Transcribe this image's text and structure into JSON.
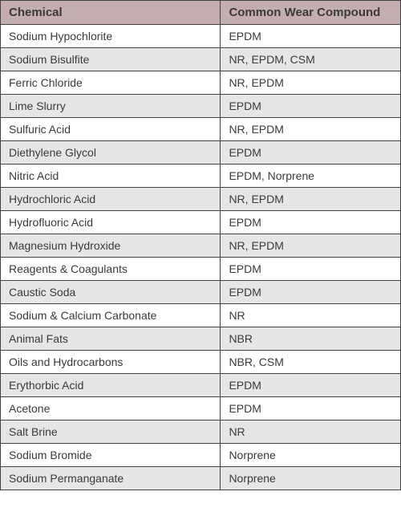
{
  "table": {
    "header_bg": "#c4aeb0",
    "row_even_bg": "#ffffff",
    "row_odd_bg": "#e6e6e5",
    "border_color": "#414042",
    "text_color": "#3a3a3a",
    "header_fontsize": 15,
    "cell_fontsize": 14,
    "columns": [
      {
        "key": "chemical",
        "label": "Chemical"
      },
      {
        "key": "compound",
        "label": "Common Wear Compound"
      }
    ],
    "rows": [
      {
        "chemical": "Sodium Hypochlorite",
        "compound": "EPDM"
      },
      {
        "chemical": "Sodium Bisulfite",
        "compound": "NR, EPDM, CSM"
      },
      {
        "chemical": "Ferric Chloride",
        "compound": "NR, EPDM"
      },
      {
        "chemical": "Lime Slurry",
        "compound": "EPDM"
      },
      {
        "chemical": "Sulfuric Acid",
        "compound": "NR, EPDM"
      },
      {
        "chemical": "Diethylene Glycol",
        "compound": "EPDM"
      },
      {
        "chemical": "Nitric Acid",
        "compound": "EPDM, Norprene"
      },
      {
        "chemical": "Hydrochloric Acid",
        "compound": "NR, EPDM"
      },
      {
        "chemical": "Hydrofluoric Acid",
        "compound": "EPDM"
      },
      {
        "chemical": "Magnesium Hydroxide",
        "compound": "NR, EPDM"
      },
      {
        "chemical": "Reagents & Coagulants",
        "compound": "EPDM"
      },
      {
        "chemical": "Caustic Soda",
        "compound": "EPDM"
      },
      {
        "chemical": "Sodium & Calcium Carbonate",
        "compound": "NR"
      },
      {
        "chemical": "Animal Fats",
        "compound": "NBR"
      },
      {
        "chemical": "Oils and Hydrocarbons",
        "compound": "NBR, CSM"
      },
      {
        "chemical": "Erythorbic Acid",
        "compound": "EPDM"
      },
      {
        "chemical": "Acetone",
        "compound": "EPDM"
      },
      {
        "chemical": "Salt Brine",
        "compound": "NR"
      },
      {
        "chemical": "Sodium Bromide",
        "compound": "Norprene"
      },
      {
        "chemical": "Sodium Permanganate",
        "compound": "Norprene"
      }
    ]
  }
}
